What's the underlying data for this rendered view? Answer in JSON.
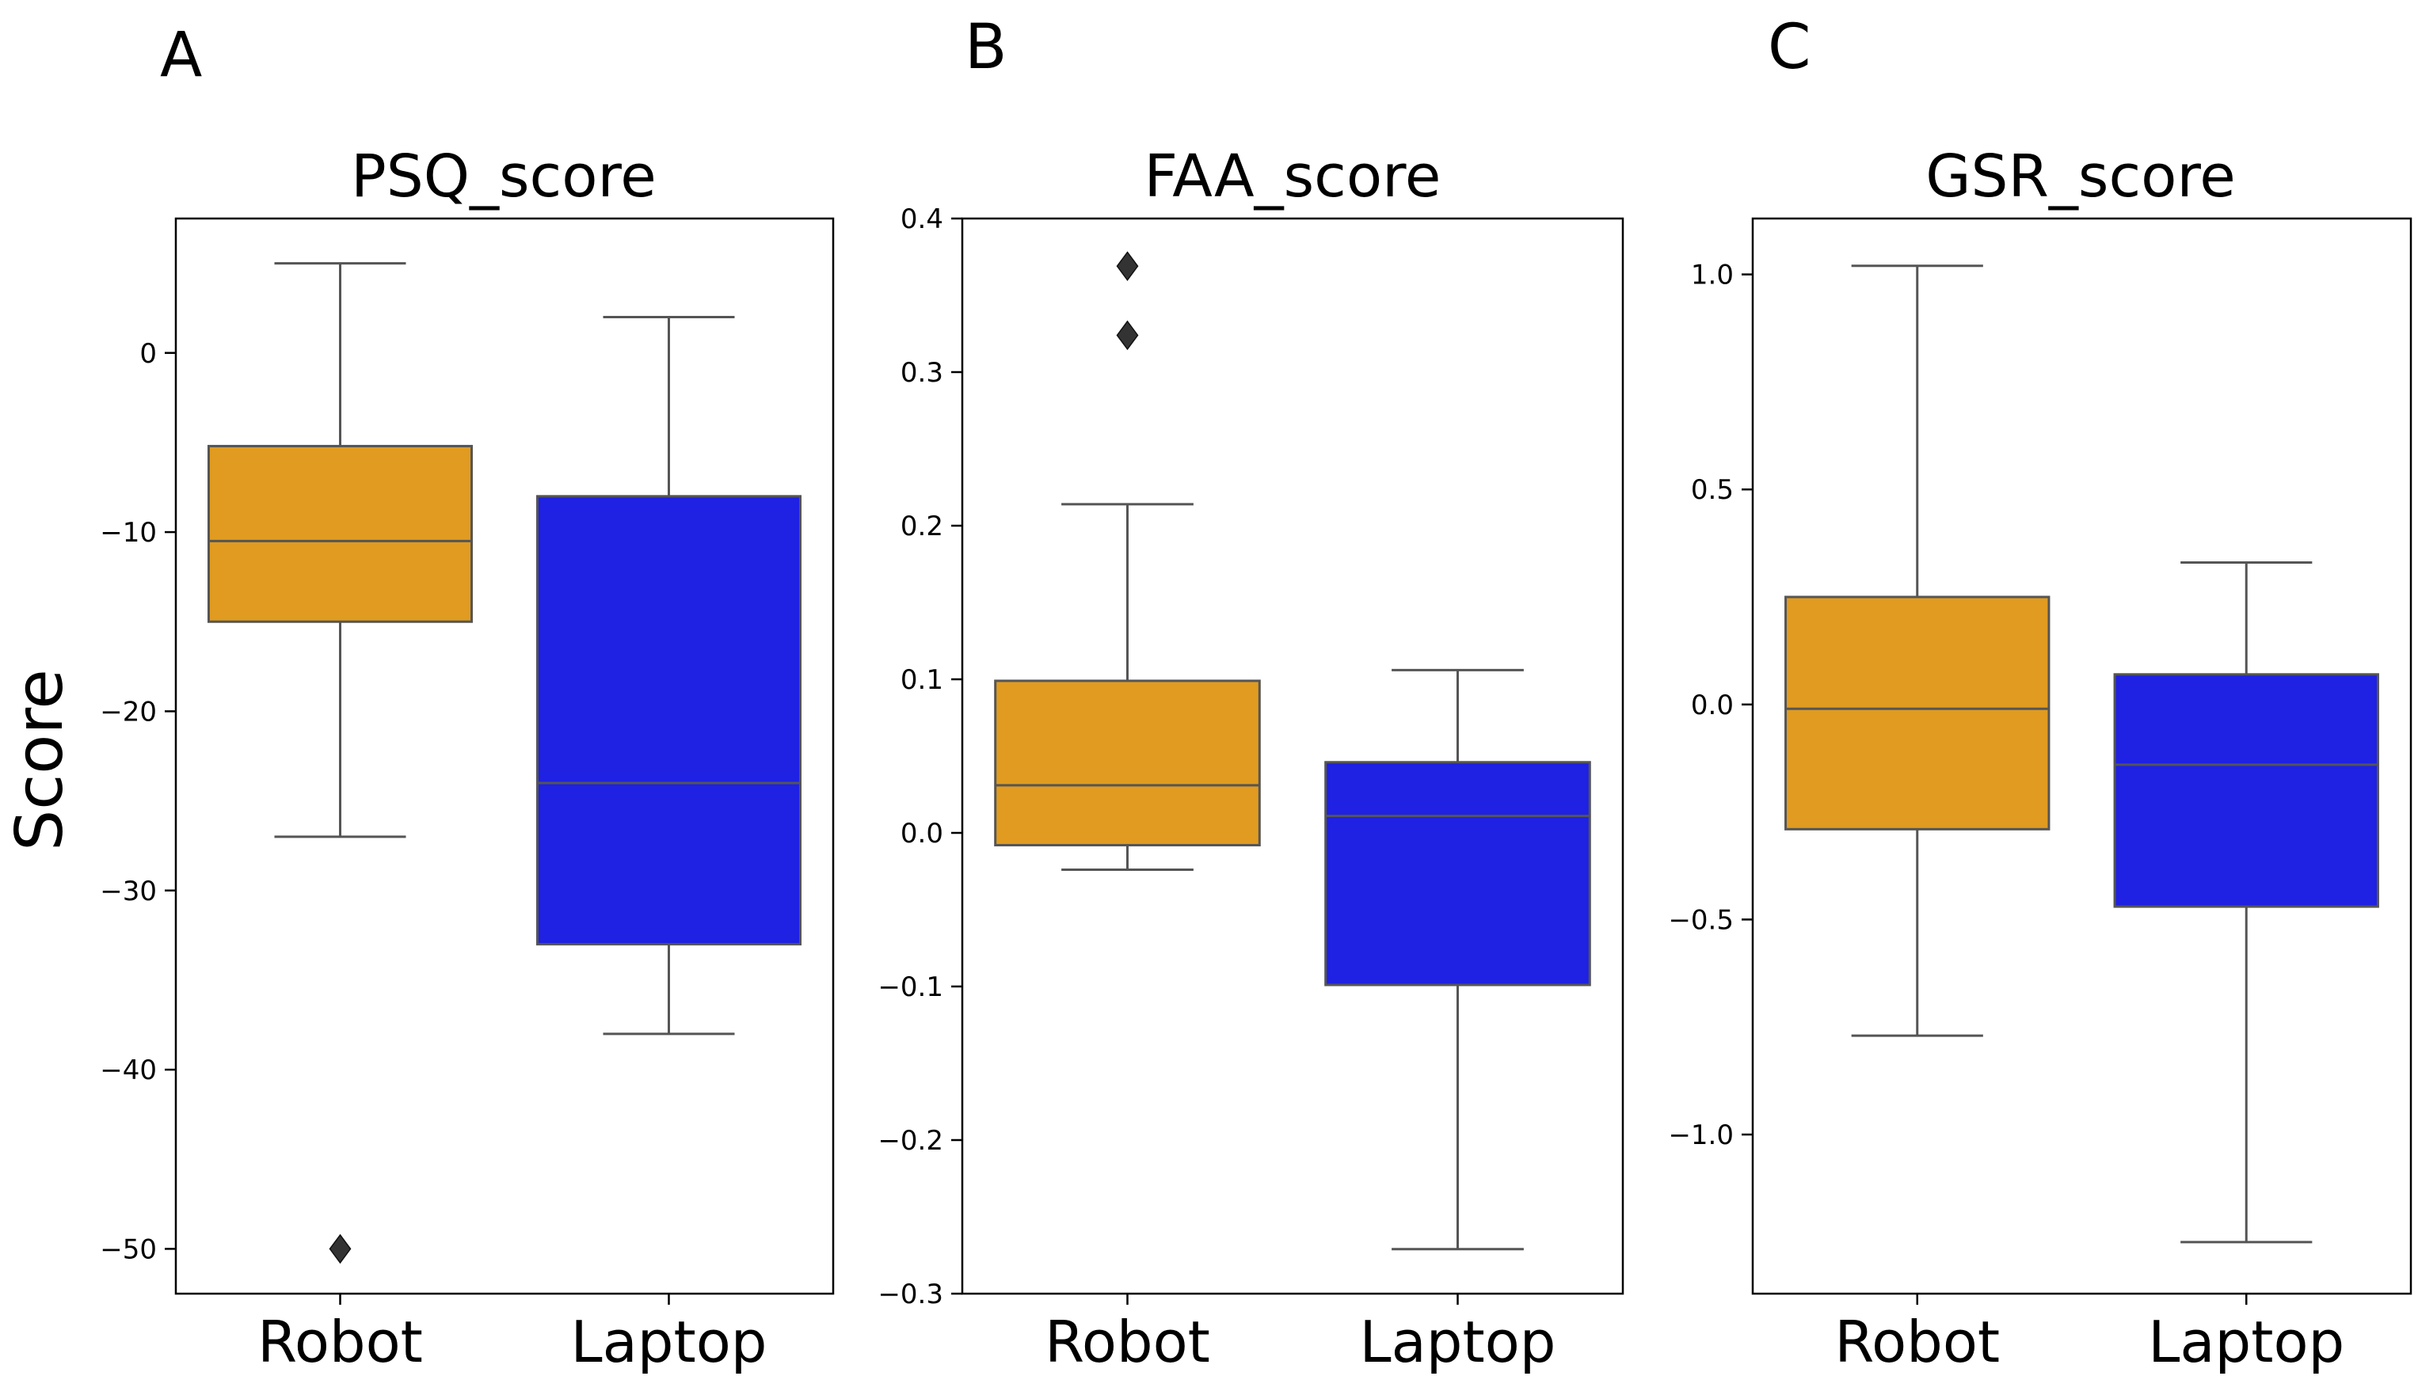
{
  "figure": {
    "ylabel": "Score",
    "colors": {
      "robot": "#e09b20",
      "laptop": "#1f21e3",
      "line": "#555555"
    }
  },
  "chart_data": [
    {
      "type": "box",
      "panel": "A",
      "title": "PSQ_score",
      "categories": [
        "Robot",
        "Laptop"
      ],
      "ylim": [
        -52.5,
        7.5
      ],
      "yticks": [
        0,
        -10,
        -20,
        -30,
        -40,
        -50
      ],
      "yticklabels": [
        "0",
        "−10",
        "−20",
        "−30",
        "−40",
        "−50"
      ],
      "series": [
        {
          "name": "Robot",
          "whisker_low": -27,
          "q1": -15,
          "median": -10.5,
          "q3": -5.2,
          "whisker_high": 5,
          "outliers": [
            -50
          ]
        },
        {
          "name": "Laptop",
          "whisker_low": -38,
          "q1": -33,
          "median": -24,
          "q3": -8,
          "whisker_high": 2,
          "outliers": []
        }
      ]
    },
    {
      "type": "box",
      "panel": "B",
      "title": "FAA_score",
      "categories": [
        "Robot",
        "Laptop"
      ],
      "ylim": [
        -0.3,
        0.4
      ],
      "yticks": [
        0.4,
        0.3,
        0.2,
        0.1,
        0.0,
        -0.1,
        -0.2,
        -0.3
      ],
      "yticklabels": [
        "0.4",
        "0.3",
        "0.2",
        "0.1",
        "0.0",
        "−0.1",
        "−0.2",
        "−0.3"
      ],
      "series": [
        {
          "name": "Robot",
          "whisker_low": -0.024,
          "q1": -0.008,
          "median": 0.031,
          "q3": 0.099,
          "whisker_high": 0.214,
          "outliers": [
            0.369,
            0.324
          ]
        },
        {
          "name": "Laptop",
          "whisker_low": -0.271,
          "q1": -0.099,
          "median": 0.011,
          "q3": 0.046,
          "whisker_high": 0.106,
          "outliers": []
        }
      ]
    },
    {
      "type": "box",
      "panel": "C",
      "title": "GSR_score",
      "categories": [
        "Robot",
        "Laptop"
      ],
      "ylim": [
        -1.37,
        1.13
      ],
      "yticks": [
        1.0,
        0.5,
        0.0,
        -0.5,
        -1.0
      ],
      "yticklabels": [
        "1.0",
        "0.5",
        "0.0",
        "−0.5",
        "−1.0"
      ],
      "series": [
        {
          "name": "Robot",
          "whisker_low": -0.77,
          "q1": -0.29,
          "median": -0.01,
          "q3": 0.25,
          "whisker_high": 1.02,
          "outliers": []
        },
        {
          "name": "Laptop",
          "whisker_low": -1.25,
          "q1": -0.47,
          "median": -0.14,
          "q3": 0.07,
          "whisker_high": 0.33,
          "outliers": []
        }
      ]
    }
  ]
}
